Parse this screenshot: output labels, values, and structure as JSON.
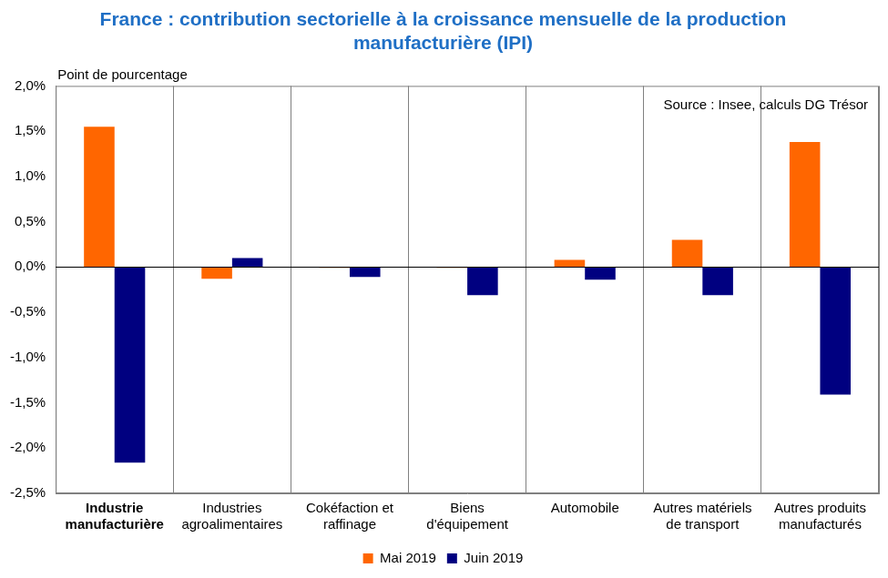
{
  "chart_data": {
    "type": "bar",
    "title": [
      "France : contribution sectorielle à la croissance mensuelle de la production",
      "manufacturière (IPI)"
    ],
    "y_label": "Point de pourcentage",
    "annotation": "Source : Insee, calculs DG Trésor",
    "categories": [
      [
        "Industrie",
        "manufacturière"
      ],
      [
        "Industries",
        "agroalimentaires"
      ],
      [
        "Cokéfaction et",
        "raffinage"
      ],
      [
        "Biens",
        "d'équipement"
      ],
      [
        "Automobile"
      ],
      [
        "Autres matériels",
        "de transport"
      ],
      [
        "Autres produits",
        "manufacturés"
      ]
    ],
    "series": [
      {
        "name": "Mai 2019",
        "color": "#ff6600",
        "values": [
          1.55,
          -0.13,
          -0.01,
          -0.01,
          0.08,
          0.3,
          1.38
        ]
      },
      {
        "name": "Juin 2019",
        "color": "#000080",
        "values": [
          -2.16,
          0.1,
          -0.11,
          -0.31,
          -0.14,
          -0.31,
          -1.41
        ]
      }
    ],
    "ylim": [
      -2.5,
      2.0
    ],
    "yticks": [
      {
        "value": -2.5,
        "label": "-2,5%"
      },
      {
        "value": -2.0,
        "label": "-2,0%"
      },
      {
        "value": -1.5,
        "label": "-1,5%"
      },
      {
        "value": -1.0,
        "label": "-1,0%"
      },
      {
        "value": -0.5,
        "label": "-0,5%"
      },
      {
        "value": 0.0,
        "label": "0,0%"
      },
      {
        "value": 0.5,
        "label": "0,5%"
      },
      {
        "value": 1.0,
        "label": "1,0%"
      },
      {
        "value": 1.5,
        "label": "1,5%"
      },
      {
        "value": 2.0,
        "label": "2,0%"
      }
    ],
    "grid": true,
    "legend": "bottom"
  }
}
